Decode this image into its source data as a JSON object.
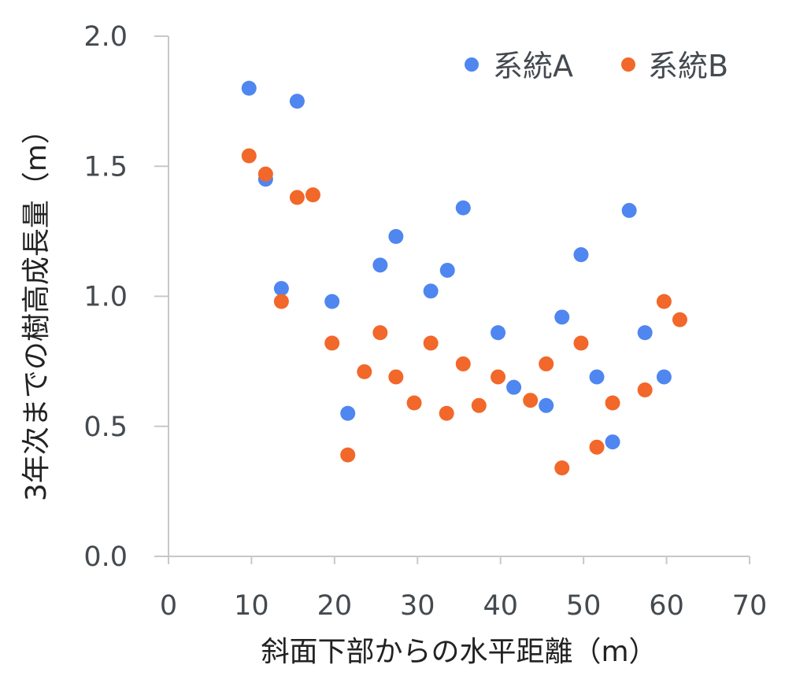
{
  "chart_data": {
    "type": "scatter",
    "xlabel": "斜面下部からの水平距離（m）",
    "ylabel": "3年次までの樹高成長量（m）",
    "xlim": [
      0,
      70
    ],
    "ylim": [
      0.0,
      2.0
    ],
    "x_ticks": [
      "0",
      "10",
      "20",
      "30",
      "40",
      "50",
      "60",
      "70"
    ],
    "y_ticks": [
      "0.0",
      "0.5",
      "1.0",
      "1.5",
      "2.0"
    ],
    "grid": false,
    "legend_position": "top-right",
    "series": [
      {
        "name": "系統A",
        "color": "#4f86f0",
        "points": [
          [
            9.7,
            1.8
          ],
          [
            11.7,
            1.45
          ],
          [
            13.6,
            1.03
          ],
          [
            15.5,
            1.75
          ],
          [
            19.7,
            0.98
          ],
          [
            21.6,
            0.55
          ],
          [
            25.5,
            1.12
          ],
          [
            27.4,
            1.23
          ],
          [
            31.6,
            1.02
          ],
          [
            33.6,
            1.1
          ],
          [
            35.5,
            1.34
          ],
          [
            39.7,
            0.86
          ],
          [
            41.6,
            0.65
          ],
          [
            45.5,
            0.58
          ],
          [
            47.4,
            0.92
          ],
          [
            49.7,
            1.16
          ],
          [
            51.6,
            0.69
          ],
          [
            53.5,
            0.44
          ],
          [
            55.5,
            1.33
          ],
          [
            57.4,
            0.86
          ],
          [
            59.7,
            0.69
          ]
        ]
      },
      {
        "name": "系統B",
        "color": "#f2672a",
        "points": [
          [
            9.7,
            1.54
          ],
          [
            11.7,
            1.47
          ],
          [
            13.6,
            0.98
          ],
          [
            15.5,
            1.38
          ],
          [
            17.4,
            1.39
          ],
          [
            19.7,
            0.82
          ],
          [
            21.6,
            0.39
          ],
          [
            23.6,
            0.71
          ],
          [
            25.5,
            0.86
          ],
          [
            27.4,
            0.69
          ],
          [
            29.6,
            0.59
          ],
          [
            31.6,
            0.82
          ],
          [
            33.5,
            0.55
          ],
          [
            35.5,
            0.74
          ],
          [
            37.4,
            0.58
          ],
          [
            39.7,
            0.69
          ],
          [
            43.6,
            0.6
          ],
          [
            45.5,
            0.74
          ],
          [
            47.4,
            0.34
          ],
          [
            49.7,
            0.82
          ],
          [
            51.6,
            0.42
          ],
          [
            53.5,
            0.59
          ],
          [
            57.4,
            0.64
          ],
          [
            59.7,
            0.98
          ],
          [
            61.6,
            0.91
          ]
        ]
      }
    ]
  }
}
